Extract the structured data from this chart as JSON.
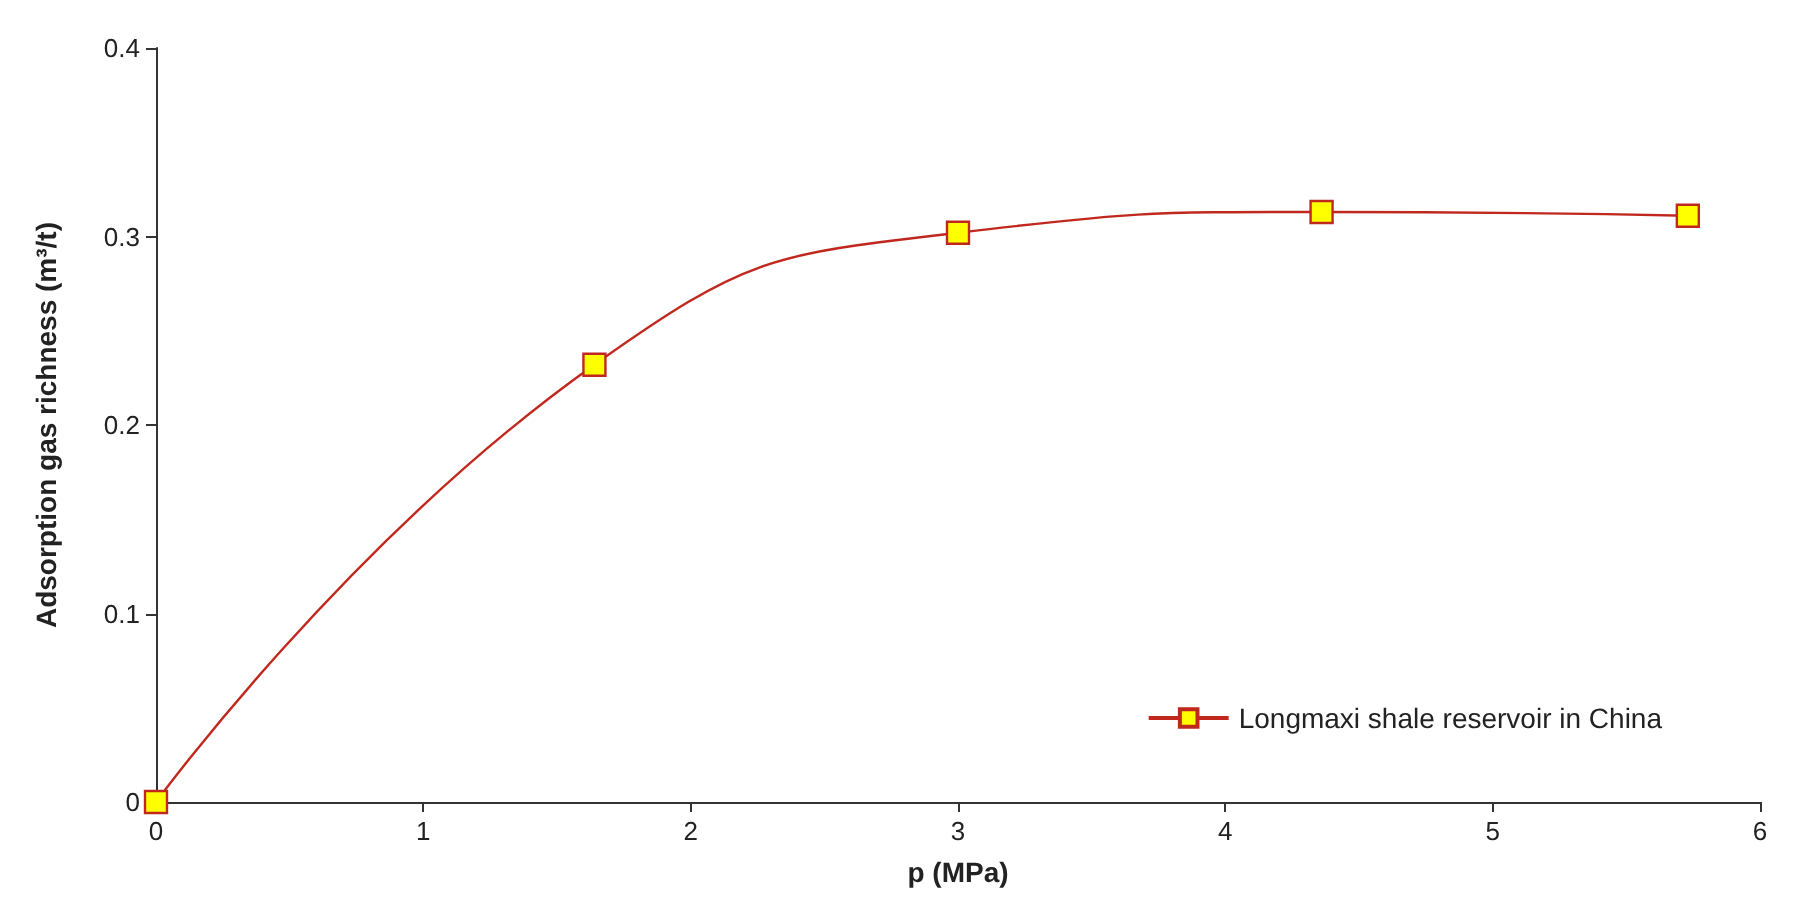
{
  "chart_data": {
    "type": "line",
    "xlabel": "p (MPa)",
    "ylabel": "Adsorption gas richness (m³/t)",
    "x": [
      0,
      1.64,
      3.0,
      4.36,
      5.73
    ],
    "series": [
      {
        "name": "Longmaxi shale reservoir in China",
        "color": "#c0281e",
        "values": [
          0,
          0.232,
          0.302,
          0.313,
          0.311
        ]
      }
    ],
    "xlim": [
      0,
      6
    ],
    "xticks": [
      0,
      1,
      2,
      3,
      4,
      5,
      6
    ],
    "ylim": [
      0,
      0.4
    ],
    "yticks": [
      0,
      0.1,
      0.2,
      0.3,
      0.4
    ],
    "grid": false,
    "legend": "bottom right",
    "marker": "square",
    "line_style": "solid"
  }
}
